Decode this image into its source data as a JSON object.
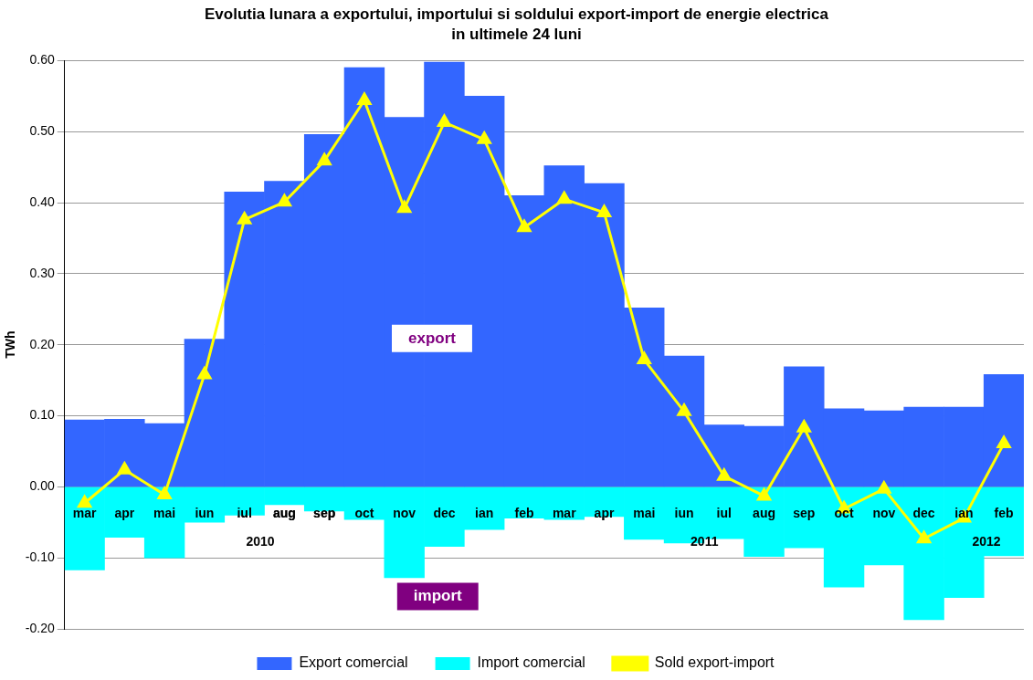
{
  "chart_data": {
    "type": "bar",
    "title": "Evolutia lunara a exportului, importului si soldului export-import de energie electrica",
    "subtitle": "in ultimele 24 luni",
    "ylabel": "TWh",
    "categories": [
      "mar",
      "apr",
      "mai",
      "iun",
      "iul",
      "aug",
      "sep",
      "oct",
      "nov",
      "dec",
      "ian",
      "feb",
      "mar",
      "apr",
      "mai",
      "iun",
      "iul",
      "aug",
      "sep",
      "oct",
      "nov",
      "dec",
      "ian",
      "feb"
    ],
    "stacked": true,
    "series": [
      {
        "name": "Export comercial",
        "color": "#3366ff",
        "values": [
          0.094,
          0.095,
          0.089,
          0.208,
          0.415,
          0.43,
          0.496,
          0.59,
          0.52,
          0.598,
          0.55,
          0.41,
          0.452,
          0.427,
          0.252,
          0.184,
          0.087,
          0.085,
          0.169,
          0.11,
          0.107,
          0.112,
          0.112,
          0.158
        ]
      },
      {
        "name": "Import comercial",
        "color": "#00ffff",
        "values": [
          -0.117,
          -0.071,
          -0.1,
          -0.05,
          -0.04,
          -0.025,
          -0.034,
          -0.046,
          -0.128,
          -0.084,
          -0.06,
          -0.044,
          -0.046,
          -0.042,
          -0.074,
          -0.079,
          -0.073,
          -0.098,
          -0.086,
          -0.141,
          -0.11,
          -0.187,
          -0.156,
          -0.097
        ]
      },
      {
        "name": "Sold export-import",
        "type": "line",
        "color": "#ffff00",
        "marker": "triangle",
        "values": [
          -0.023,
          0.024,
          -0.011,
          0.158,
          0.376,
          0.401,
          0.459,
          0.544,
          0.392,
          0.513,
          0.489,
          0.365,
          0.405,
          0.386,
          0.179,
          0.106,
          0.015,
          -0.013,
          0.083,
          -0.031,
          -0.003,
          -0.073,
          -0.044,
          0.061
        ]
      }
    ],
    "ylim": [
      -0.2,
      0.6
    ],
    "yticks": [
      {
        "value": -0.2,
        "label": "-0.20"
      },
      {
        "value": -0.1,
        "label": "-0.10"
      },
      {
        "value": 0,
        "label": "0.00"
      },
      {
        "value": 0.1,
        "label": "0.10"
      },
      {
        "value": 0.2,
        "label": "0.20"
      },
      {
        "value": 0.3,
        "label": "0.30"
      },
      {
        "value": 0.4,
        "label": "0.40"
      },
      {
        "value": 0.5,
        "label": "0.50"
      },
      {
        "value": 0.6,
        "label": "0.60"
      }
    ],
    "grid": "y",
    "legend": "bottom",
    "annotations": [
      "2010",
      "2011",
      "2012",
      "export",
      "import"
    ]
  }
}
